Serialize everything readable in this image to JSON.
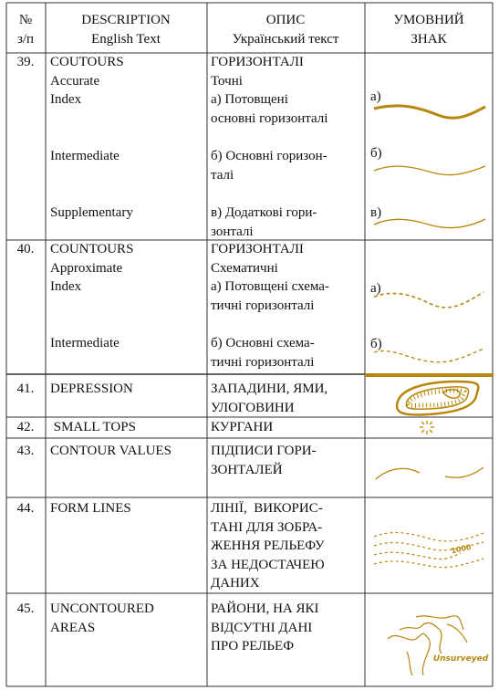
{
  "header": [
    [
      "№",
      "з/п"
    ],
    [
      "DESCRIPTION",
      "English Text"
    ],
    [
      "ОПИС",
      "Український текст"
    ],
    [
      "УМОВНИЙ",
      "ЗНАК"
    ]
  ],
  "rows": [
    {
      "number": "39.",
      "items": [
        {
          "english": [
            "COUTOURS",
            "Accurate",
            "Index"
          ],
          "ukrainian": [
            "ГОРИЗОНТАЛІ",
            "Точні",
            "а) Потовщені",
            "основні горизонталі"
          ],
          "symbol_label": "а)"
        },
        {
          "english": [
            "Intermediate"
          ],
          "ukrainian": [
            "б) Основні горизон-",
            "талі"
          ],
          "symbol_label": "б)"
        },
        {
          "english": [
            "Supplementary"
          ],
          "ukrainian": [
            "в) Додаткові гори-",
            "зонталі"
          ],
          "symbol_label": "в)"
        }
      ]
    },
    {
      "number": "40.",
      "items": [
        {
          "english": [
            "COUNTOURS",
            "Approximate",
            "Index"
          ],
          "ukrainian": [
            "ГОРИЗОНТАЛІ",
            "Схематичні",
            "а) Потовщені схема-",
            "тичні горизонталі"
          ],
          "symbol_label": "а)"
        },
        {
          "english": [
            "Intermediate"
          ],
          "ukrainian": [
            "б) Основні схема-",
            "тичні горизонталі"
          ],
          "symbol_label": "б)"
        }
      ]
    },
    {
      "number": "41.",
      "items": [
        {
          "english": [
            "DEPRESSION"
          ],
          "ukrainian": [
            "ЗАПАДИНИ, ЯМИ,",
            "УЛОГОВИНИ"
          ]
        }
      ]
    },
    {
      "number": "42.",
      "items": [
        {
          "english": [
            " SMALL TOPS"
          ],
          "ukrainian": [
            "КУРГАНИ"
          ]
        }
      ]
    },
    {
      "number": "43.",
      "items": [
        {
          "english": [
            "CONTOUR VALUES"
          ],
          "ukrainian": [
            "ПІДПИСИ ГОРИ-",
            "ЗОНТАЛЕЙ"
          ]
        }
      ]
    },
    {
      "number": "44.",
      "items": [
        {
          "english": [
            "FORM LINES"
          ],
          "ukrainian": [
            "ЛІНІЇ,  ВИКОРИС-",
            "ТАНІ ДЛЯ ЗОБРА-",
            "ЖЕННЯ РЕЛЬЕФУ",
            "ЗА НЕДОСТАЧЕЮ",
            "ДАНИХ"
          ]
        }
      ],
      "symbol_text": "1000"
    },
    {
      "number": "45.",
      "items": [
        {
          "english": [
            "UNCONTOURED",
            "AREAS"
          ],
          "ukrainian": [
            "РАЙОНИ, НА ЯКІ",
            "ВІДСУТНІ ДАНІ",
            "ПРО РЕЛЬЕФ"
          ]
        }
      ],
      "symbol_text": "Unsurveyed"
    }
  ]
}
